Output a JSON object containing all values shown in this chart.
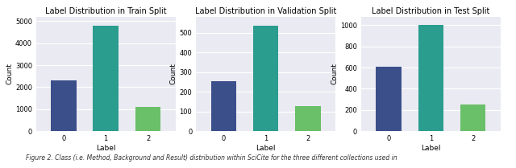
{
  "subplots": [
    {
      "title": "Label Distribution in Train Split",
      "labels": [
        0,
        1,
        2
      ],
      "values": [
        2300,
        4800,
        1100
      ],
      "xlabel": "Label",
      "ylabel": "Count",
      "ylim": [
        0,
        5200
      ],
      "yticks": [
        0,
        1000,
        2000,
        3000,
        4000,
        5000
      ]
    },
    {
      "title": "Label Distribution in Validation Split",
      "labels": [
        0,
        1,
        2
      ],
      "values": [
        255,
        535,
        125
      ],
      "xlabel": "Label",
      "ylabel": "Count",
      "ylim": [
        0,
        580
      ],
      "yticks": [
        0,
        100,
        200,
        300,
        400,
        500
      ]
    },
    {
      "title": "Label Distribution in Test Split",
      "labels": [
        0,
        1,
        2
      ],
      "values": [
        605,
        1000,
        250
      ],
      "xlabel": "Label",
      "ylabel": "Count",
      "ylim": [
        0,
        1080
      ],
      "yticks": [
        0,
        200,
        400,
        600,
        800,
        1000
      ]
    }
  ],
  "bar_colors": [
    "#3b4f8a",
    "#2a9d8f",
    "#6abf69"
  ],
  "background_color": "#eaeaf2",
  "grid_color": "#ffffff",
  "figure_facecolor": "#ffffff",
  "caption": "Figure 2. Class (i.e. Method, Background and Result) distribution within SciCite for the three different collections used in",
  "title_fontsize": 7,
  "label_fontsize": 6.5,
  "tick_fontsize": 6,
  "caption_fontsize": 5.5
}
